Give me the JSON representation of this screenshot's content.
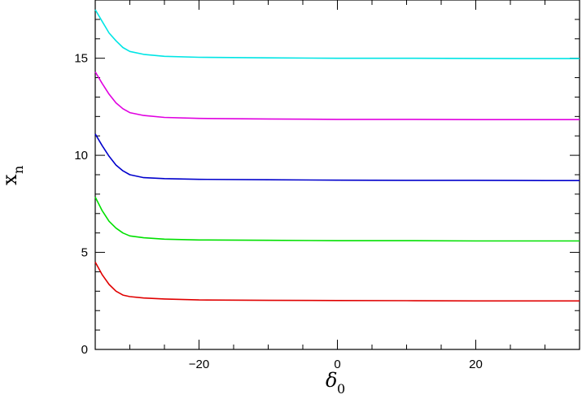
{
  "chart_data": {
    "type": "line",
    "title": "",
    "xlabel": "δ",
    "xlabel_subscript": "0",
    "ylabel": "x",
    "ylabel_subscript": "n",
    "xlim": [
      -35,
      35
    ],
    "ylim": [
      0,
      18
    ],
    "x_ticks": [
      -20,
      0,
      20
    ],
    "x_tick_labels": [
      "−20",
      "0",
      "20"
    ],
    "y_ticks": [
      0,
      5,
      10,
      15
    ],
    "y_tick_labels": [
      "0",
      "5",
      "10",
      "15"
    ],
    "x_minor_step": 5,
    "y_minor_step": 1,
    "grid": false,
    "legend": "none",
    "x": [
      -35,
      -34,
      -33,
      -32,
      -31,
      -30,
      -28,
      -25,
      -20,
      -10,
      0,
      10,
      20,
      30,
      35
    ],
    "series": [
      {
        "color": "#00e5e5",
        "values": [
          17.5,
          16.9,
          16.3,
          15.9,
          15.55,
          15.35,
          15.2,
          15.1,
          15.05,
          15.02,
          15.0,
          15.0,
          14.99,
          14.98,
          14.98
        ]
      },
      {
        "color": "#e000e0",
        "values": [
          14.3,
          13.7,
          13.15,
          12.7,
          12.4,
          12.2,
          12.05,
          11.95,
          11.9,
          11.87,
          11.85,
          11.85,
          11.84,
          11.84,
          11.84
        ]
      },
      {
        "color": "#0000cc",
        "values": [
          11.1,
          10.5,
          9.95,
          9.5,
          9.2,
          9.0,
          8.85,
          8.8,
          8.76,
          8.74,
          8.72,
          8.71,
          8.71,
          8.7,
          8.7
        ]
      },
      {
        "color": "#00e000",
        "values": [
          7.85,
          7.15,
          6.6,
          6.25,
          6.0,
          5.85,
          5.75,
          5.68,
          5.64,
          5.62,
          5.6,
          5.6,
          5.59,
          5.59,
          5.59
        ]
      },
      {
        "color": "#e00000",
        "values": [
          4.5,
          3.85,
          3.35,
          3.0,
          2.8,
          2.72,
          2.65,
          2.6,
          2.55,
          2.53,
          2.52,
          2.51,
          2.5,
          2.5,
          2.5
        ]
      }
    ]
  }
}
